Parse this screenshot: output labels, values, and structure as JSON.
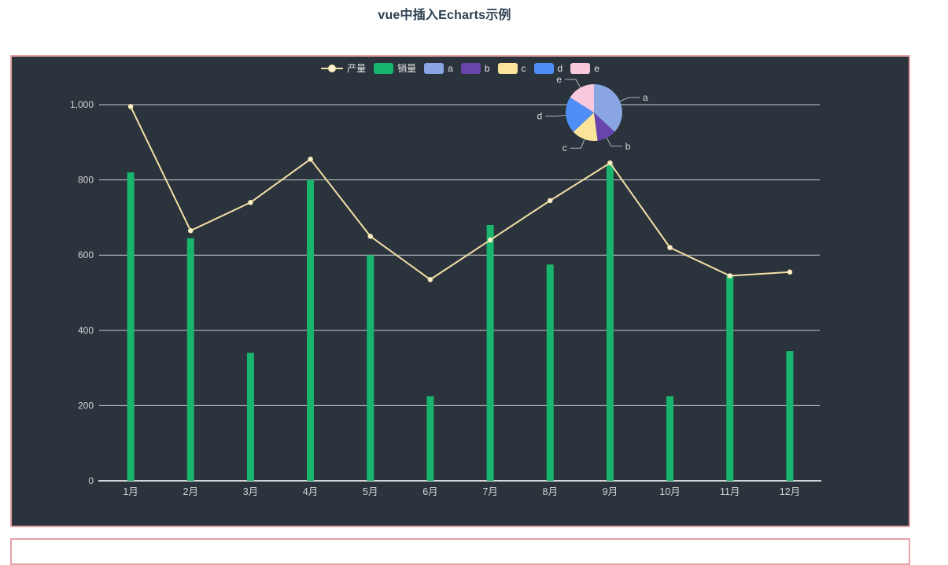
{
  "page": {
    "title": "vue中插入Echarts示例"
  },
  "theme": {
    "card_background": "#2b333c",
    "card_border": "#e9a2a6",
    "grid_line_color": "#c8cbcf",
    "axis_line_color": "#d2d4d7",
    "axis_label_color": "#d4d4d4",
    "legend_text_color": "#e8e8e8",
    "pie_label_color": "#dcdcdc",
    "pie_label_line_color": "#aeb3b9"
  },
  "legend": {
    "items": [
      {
        "label": "产量",
        "marker": "line-dot",
        "color": "#f3e0a6",
        "dot_fill": "#fdf3d2"
      },
      {
        "label": "销量",
        "marker": "rect",
        "color": "#18b56e"
      },
      {
        "label": "a",
        "marker": "rect",
        "color": "#8aa6e2"
      },
      {
        "label": "b",
        "marker": "rect",
        "color": "#6a44ad"
      },
      {
        "label": "c",
        "marker": "rect",
        "color": "#fae59b"
      },
      {
        "label": "d",
        "marker": "rect",
        "color": "#4f8df7"
      },
      {
        "label": "e",
        "marker": "rect",
        "color": "#f8c9dd"
      }
    ]
  },
  "chart_data": [
    {
      "type": "bar",
      "subtype": "bar+line combo",
      "categories": [
        "1月",
        "2月",
        "3月",
        "4月",
        "5月",
        "6月",
        "7月",
        "8月",
        "9月",
        "10月",
        "11月",
        "12月"
      ],
      "series": [
        {
          "name": "销量",
          "type": "bar",
          "color": "#18b56e",
          "values": [
            820,
            645,
            340,
            800,
            600,
            225,
            680,
            575,
            840,
            225,
            545,
            345
          ]
        },
        {
          "name": "产量",
          "type": "line",
          "color": "#f3e0a6",
          "marker_fill": "#fdf3d2",
          "values": [
            995,
            665,
            740,
            855,
            650,
            535,
            640,
            745,
            845,
            620,
            545,
            555
          ]
        }
      ],
      "xlabel": "",
      "ylabel": "",
      "ylim": [
        0,
        1000
      ],
      "ytick_values": [
        0,
        200,
        400,
        600,
        800,
        1000
      ],
      "ytick_labels": [
        "0",
        "200",
        "400",
        "600",
        "800",
        "1,000"
      ],
      "grid": true,
      "legend_position": "top-center"
    },
    {
      "type": "pie",
      "labels": [
        "a",
        "b",
        "c",
        "d",
        "e"
      ],
      "values": [
        37,
        11,
        15,
        21,
        16
      ],
      "unit": "percent-estimated",
      "colors": [
        "#8aa6e2",
        "#6a44ad",
        "#fae59b",
        "#4f8df7",
        "#f8c9dd"
      ],
      "position": "top-right",
      "legend_entries": [
        "a",
        "b",
        "c",
        "d",
        "e"
      ]
    }
  ]
}
